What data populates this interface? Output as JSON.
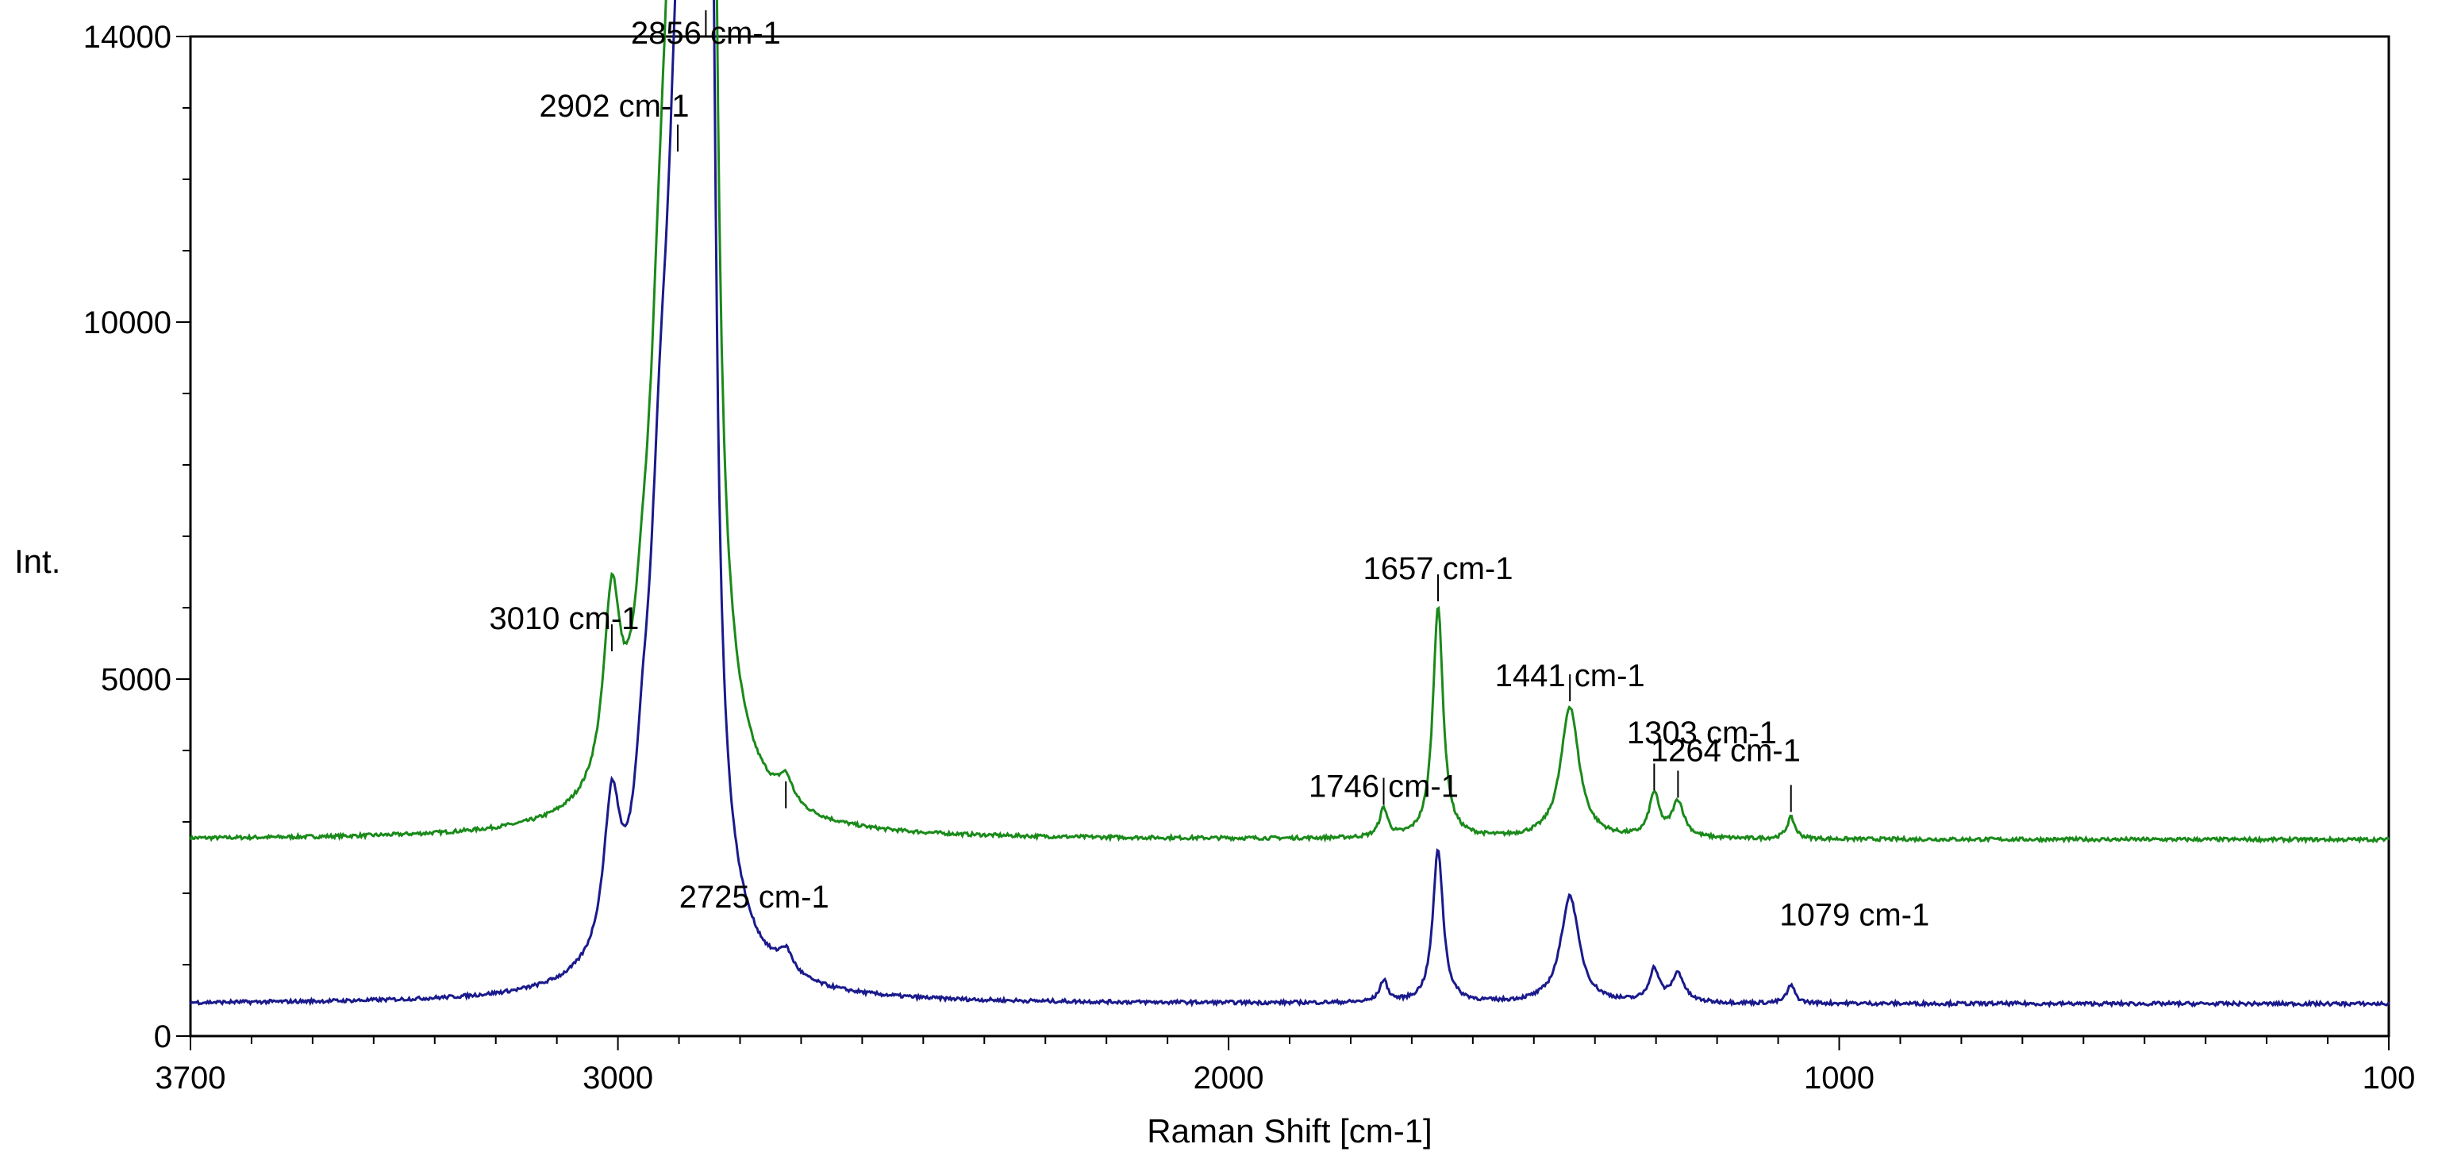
{
  "chart_data": {
    "type": "line",
    "title": "",
    "xlabel": "Raman Shift [cm-1]",
    "ylabel": "Int.",
    "xlim": [
      3700,
      100
    ],
    "ylim": [
      0,
      14000
    ],
    "x_reversed": true,
    "grid": false,
    "x_ticks": [
      3700,
      3000,
      2000,
      1000,
      100
    ],
    "x_tick_labels": [
      "3700",
      "3000",
      "2000",
      "1000",
      "100"
    ],
    "y_ticks": [
      0,
      5000,
      10000,
      14000
    ],
    "y_tick_labels": [
      "0",
      "5000",
      "10000",
      "14000"
    ],
    "colors": {
      "green": "#1a8a1a",
      "blue": "#1a1a8c",
      "axis": "#000000"
    },
    "series": [
      {
        "color": "#1a8a1a",
        "baseline": 2750,
        "x_range": [
          3700,
          100
        ],
        "peaks": [
          {
            "x": 3010,
            "y": 5300,
            "w": 16
          },
          {
            "x": 2960,
            "y": 3400,
            "w": 14
          },
          {
            "x": 2930,
            "y": 7000,
            "w": 24
          },
          {
            "x": 2902,
            "y": 12300,
            "w": 20
          },
          {
            "x": 2875,
            "y": 13400,
            "w": 26
          },
          {
            "x": 2856,
            "y": 13900,
            "w": 10
          },
          {
            "x": 2846,
            "y": 12000,
            "w": 8
          },
          {
            "x": 2725,
            "y": 3100,
            "w": 14
          },
          {
            "x": 1746,
            "y": 3150,
            "w": 8
          },
          {
            "x": 1657,
            "y": 6000,
            "w": 10
          },
          {
            "x": 1441,
            "y": 4600,
            "w": 18
          },
          {
            "x": 1303,
            "y": 3350,
            "w": 10
          },
          {
            "x": 1264,
            "y": 3250,
            "w": 12
          },
          {
            "x": 1079,
            "y": 3050,
            "w": 8
          }
        ]
      },
      {
        "color": "#1a1a8c",
        "baseline": 450,
        "x_range": [
          3700,
          100
        ],
        "peaks": [
          {
            "x": 3010,
            "y": 2500,
            "w": 16
          },
          {
            "x": 2960,
            "y": 1400,
            "w": 14
          },
          {
            "x": 2930,
            "y": 5000,
            "w": 24
          },
          {
            "x": 2902,
            "y": 8400,
            "w": 20
          },
          {
            "x": 2875,
            "y": 9300,
            "w": 26
          },
          {
            "x": 2856,
            "y": 9000,
            "w": 10
          },
          {
            "x": 2846,
            "y": 7800,
            "w": 8
          },
          {
            "x": 2725,
            "y": 750,
            "w": 14
          },
          {
            "x": 1746,
            "y": 750,
            "w": 8
          },
          {
            "x": 1657,
            "y": 2600,
            "w": 10
          },
          {
            "x": 1441,
            "y": 1950,
            "w": 18
          },
          {
            "x": 1303,
            "y": 900,
            "w": 10
          },
          {
            "x": 1264,
            "y": 850,
            "w": 12
          },
          {
            "x": 1079,
            "y": 700,
            "w": 8
          }
        ]
      }
    ],
    "annotations": [
      {
        "text": "2856 cm-1",
        "x": 2856,
        "y": 13900
      },
      {
        "text": "2902 cm-1",
        "x": 2902,
        "y": 13100
      },
      {
        "text": "3010 cm-1",
        "x": 3010,
        "y": 5700
      },
      {
        "text": "1657 cm-1",
        "x": 1657,
        "y": 6400
      },
      {
        "text": "1441 cm-1",
        "x": 1441,
        "y": 4900
      },
      {
        "text": "1746 cm-1",
        "x": 1746,
        "y": 3350
      },
      {
        "text": "1303 cm-1",
        "x": 1303,
        "y": 4100
      },
      {
        "text": "1264 cm-1",
        "x": 1264,
        "y": 3850
      },
      {
        "text": "2725 cm-1",
        "x": 2725,
        "y": 1800
      },
      {
        "text": "1079 cm-1",
        "x": 1079,
        "y": 1550
      }
    ]
  }
}
